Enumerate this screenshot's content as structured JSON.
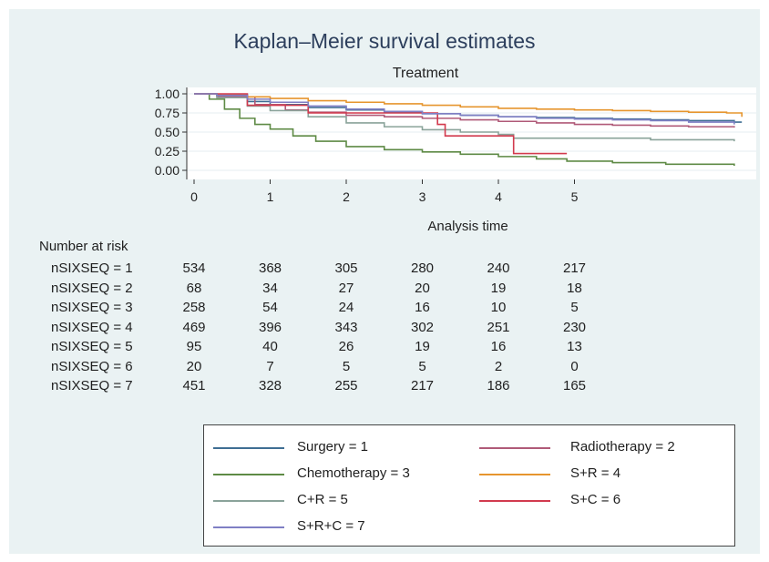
{
  "chart_data": {
    "type": "line",
    "title": "Kaplan–Meier survival estimates",
    "subtitle": "Treatment",
    "xlabel": "Analysis time",
    "ylabel": "",
    "xlim": [
      0,
      7.2
    ],
    "ylim": [
      0,
      1.1
    ],
    "xticks": [
      "0",
      "1",
      "2",
      "3",
      "4",
      "5"
    ],
    "yticks": [
      "1.00",
      "0.75",
      "0.50",
      "0.25",
      "0.00"
    ],
    "grid": true,
    "legend_position": "bottom",
    "series": [
      {
        "name": "Surgery = 1",
        "color": "#3f6e93",
        "x": [
          0,
          0.3,
          0.7,
          1,
          1.5,
          2,
          2.5,
          3,
          3.5,
          4,
          4.5,
          5,
          5.5,
          6,
          6.5,
          7.1,
          7.2
        ],
        "y": [
          1,
          0.98,
          0.9,
          0.86,
          0.82,
          0.79,
          0.76,
          0.74,
          0.72,
          0.7,
          0.69,
          0.68,
          0.67,
          0.66,
          0.65,
          0.63,
          0.63
        ]
      },
      {
        "name": "Radiotherapy = 2",
        "color": "#b05a78",
        "x": [
          0,
          0.3,
          0.8,
          1.2,
          1.5,
          2,
          2.5,
          3,
          3.5,
          4,
          4.5,
          5,
          5.5,
          6,
          6.5,
          7.1
        ],
        "y": [
          1,
          0.96,
          0.86,
          0.79,
          0.76,
          0.72,
          0.7,
          0.68,
          0.66,
          0.64,
          0.62,
          0.6,
          0.59,
          0.58,
          0.57,
          0.56
        ]
      },
      {
        "name": "Chemotherapy = 3",
        "color": "#5e8a45",
        "x": [
          0,
          0.2,
          0.4,
          0.6,
          0.8,
          1,
          1.3,
          1.6,
          2,
          2.5,
          3,
          3.5,
          4,
          4.5,
          4.9,
          5.5,
          6.2,
          7.1
        ],
        "y": [
          1,
          0.93,
          0.8,
          0.68,
          0.6,
          0.54,
          0.45,
          0.38,
          0.31,
          0.27,
          0.24,
          0.21,
          0.18,
          0.15,
          0.12,
          0.1,
          0.08,
          0.06
        ]
      },
      {
        "name": "S+R = 4",
        "color": "#e6952e",
        "x": [
          0,
          0.3,
          0.7,
          1,
          1.5,
          2,
          2.5,
          3,
          3.5,
          4,
          4.5,
          5,
          5.5,
          6,
          6.5,
          7,
          7.2
        ],
        "y": [
          1,
          0.99,
          0.96,
          0.94,
          0.91,
          0.89,
          0.87,
          0.85,
          0.83,
          0.81,
          0.8,
          0.79,
          0.78,
          0.77,
          0.76,
          0.75,
          0.7
        ]
      },
      {
        "name": "C+R = 5",
        "color": "#8aa39a",
        "x": [
          0,
          0.3,
          0.7,
          1,
          1.5,
          2,
          2.5,
          3,
          3.5,
          4,
          4.2,
          5,
          6,
          7.1
        ],
        "y": [
          1,
          0.95,
          0.84,
          0.78,
          0.7,
          0.62,
          0.57,
          0.53,
          0.5,
          0.47,
          0.42,
          0.42,
          0.4,
          0.38
        ]
      },
      {
        "name": "S+C = 6",
        "color": "#d23a4e",
        "x": [
          0,
          0.5,
          0.7,
          1.4,
          1.5,
          2.5,
          3.1,
          3.2,
          3.3,
          3.6,
          4.1,
          4.2,
          4.9
        ],
        "y": [
          1,
          1,
          0.85,
          0.85,
          0.75,
          0.75,
          0.75,
          0.6,
          0.45,
          0.45,
          0.45,
          0.22,
          0.22
        ]
      },
      {
        "name": "S+R+C = 7",
        "color": "#7f7fc4",
        "x": [
          0,
          0.3,
          0.7,
          1,
          1.5,
          2,
          2.5,
          3,
          3.5,
          4,
          4.5,
          5,
          5.5,
          6,
          6.5,
          7.1
        ],
        "y": [
          1,
          0.98,
          0.93,
          0.89,
          0.84,
          0.8,
          0.77,
          0.74,
          0.72,
          0.7,
          0.68,
          0.67,
          0.66,
          0.65,
          0.63,
          0.6
        ]
      }
    ]
  },
  "risk_table": {
    "title": "Number at risk",
    "rows": [
      {
        "label": "nSIXSEQ = 1",
        "values": [
          "534",
          "368",
          "305",
          "280",
          "240",
          "217"
        ]
      },
      {
        "label": "nSIXSEQ = 2",
        "values": [
          "68",
          "34",
          "27",
          "20",
          "19",
          "18"
        ]
      },
      {
        "label": "nSIXSEQ = 3",
        "values": [
          "258",
          "54",
          "24",
          "16",
          "10",
          "5"
        ]
      },
      {
        "label": "nSIXSEQ = 4",
        "values": [
          "469",
          "396",
          "343",
          "302",
          "251",
          "230"
        ]
      },
      {
        "label": "nSIXSEQ = 5",
        "values": [
          "95",
          "40",
          "26",
          "19",
          "16",
          "13"
        ]
      },
      {
        "label": "nSIXSEQ = 6",
        "values": [
          "20",
          "7",
          "5",
          "5",
          "2",
          "0"
        ]
      },
      {
        "label": "nSIXSEQ = 7",
        "values": [
          "451",
          "328",
          "255",
          "217",
          "186",
          "165"
        ]
      }
    ]
  }
}
